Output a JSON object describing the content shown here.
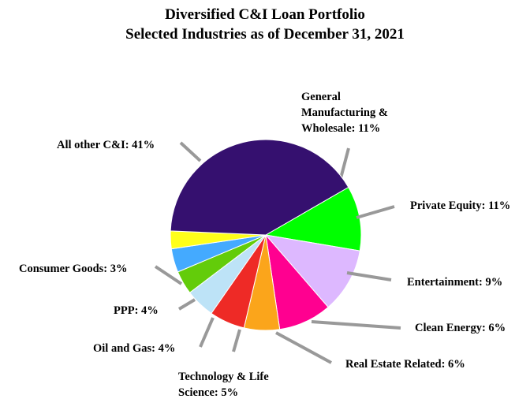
{
  "chart_data": {
    "type": "pie",
    "title": "Diversified C&I Loan Portfolio",
    "subtitle": "Selected Industries as of December 31, 2021",
    "slices": [
      {
        "label": "General Manufacturing & Wholesale",
        "text": [
          "General",
          "Manufacturing &",
          "Wholesale: 11%"
        ],
        "value": 11,
        "color": "#00ff00"
      },
      {
        "label": "Private Equity",
        "text": [
          "Private Equity: 11%"
        ],
        "value": 11,
        "color": "#ddb8ff"
      },
      {
        "label": "Entertainment",
        "text": [
          "Entertainment: 9%"
        ],
        "value": 9,
        "color": "#ff0090"
      },
      {
        "label": "Clean Energy",
        "text": [
          "Clean Energy: 6%"
        ],
        "value": 6,
        "color": "#fba51b"
      },
      {
        "label": "Real Estate Related",
        "text": [
          "Real Estate Related: 6%"
        ],
        "value": 6,
        "color": "#ee2a26"
      },
      {
        "label": "Technology & Life Science",
        "text": [
          "Technology & Life",
          "Science: 5%"
        ],
        "value": 5,
        "color": "#bde3f7"
      },
      {
        "label": "Oil and Gas",
        "text": [
          "Oil and Gas: 4%"
        ],
        "value": 4,
        "color": "#63cc0a"
      },
      {
        "label": "PPP",
        "text": [
          "PPP: 4%"
        ],
        "value": 4,
        "color": "#44aaff"
      },
      {
        "label": "Consumer Goods",
        "text": [
          "Consumer Goods: 3%"
        ],
        "value": 3,
        "color": "#ffff1a"
      },
      {
        "label": "All other C&I",
        "text": [
          "All other C&I: 41%"
        ],
        "value": 41,
        "color": "#35106f"
      }
    ],
    "start_angle_deg": 60,
    "direction": "clockwise",
    "leader_color": "#999999"
  }
}
